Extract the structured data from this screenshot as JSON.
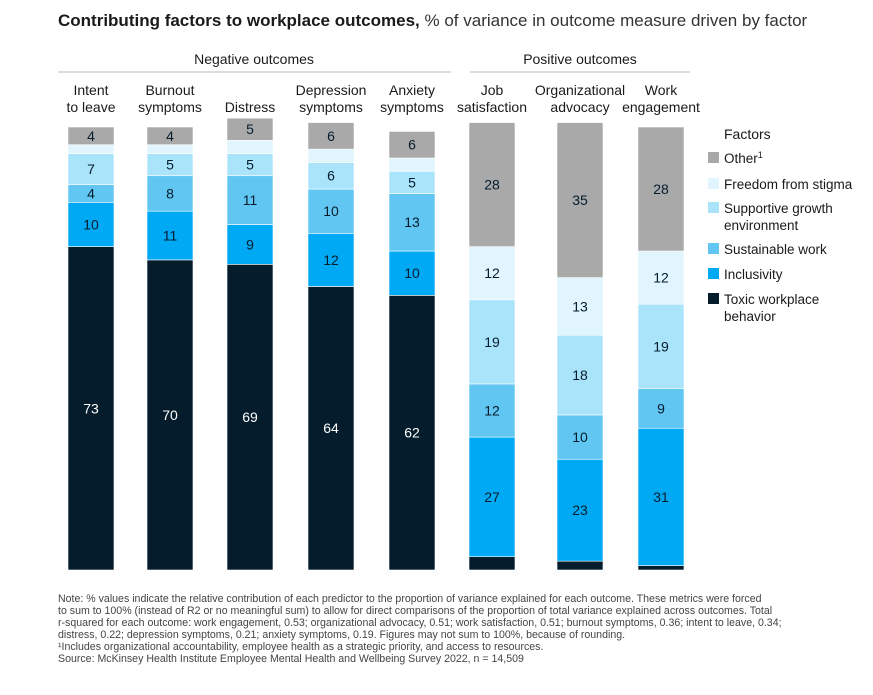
{
  "title": {
    "bold": "Contributing factors to workplace outcomes,",
    "light": "% of variance in outcome measure driven by factor"
  },
  "group_labels": {
    "negative": "Negative outcomes",
    "positive": "Positive outcomes"
  },
  "legend_title": "Factors",
  "chart_data": {
    "type": "bar",
    "stacked": true,
    "orientation": "vertical",
    "ylim": [
      0,
      100
    ],
    "categories": [
      [
        "Intent",
        "to leave"
      ],
      [
        "Burnout",
        "symptoms"
      ],
      [
        "Distress"
      ],
      [
        "Depression",
        "symptoms"
      ],
      [
        "Anxiety",
        "symptoms"
      ],
      [
        "Job",
        "satisfaction"
      ],
      [
        "Organizational",
        "advocacy"
      ],
      [
        "Work",
        "engagement"
      ]
    ],
    "series": [
      {
        "name": "Toxic workplace behavior",
        "label_lines": [
          "Toxic workplace",
          "behavior"
        ],
        "color": "#051c2c",
        "text_color": "#ffffff",
        "values": [
          73,
          70,
          69,
          64,
          62,
          3,
          2,
          1
        ]
      },
      {
        "name": "Inclusivity",
        "label_lines": [
          "Inclusivity"
        ],
        "color": "#00a9f4",
        "text_color": "#051c2c",
        "values": [
          10,
          11,
          9,
          12,
          10,
          27,
          23,
          31
        ]
      },
      {
        "name": "Sustainable work",
        "label_lines": [
          "Sustainable work"
        ],
        "color": "#61c6f2",
        "text_color": "#051c2c",
        "values": [
          4,
          8,
          11,
          10,
          13,
          12,
          10,
          9
        ]
      },
      {
        "name": "Supportive growth environment",
        "label_lines": [
          "Supportive growth",
          "environment"
        ],
        "color": "#aae4fb",
        "text_color": "#051c2c",
        "values": [
          7,
          5,
          5,
          6,
          5,
          19,
          18,
          19
        ]
      },
      {
        "name": "Freedom from stigma",
        "label_lines": [
          "Freedom from stigma"
        ],
        "color": "#e0f5fd",
        "text_color": "#051c2c",
        "values": [
          2,
          2,
          3,
          3,
          3,
          12,
          13,
          12
        ]
      },
      {
        "name": "Other",
        "label_lines": [
          "Other"
        ],
        "superscript": "1",
        "color": "#a9a9a9",
        "text_color": "#051c2c",
        "values": [
          4,
          4,
          5,
          6,
          6,
          28,
          35,
          28
        ]
      }
    ]
  },
  "footnote": [
    "Note: % values indicate the relative contribution of each predictor to the proportion of variance explained for each outcome. These metrics were forced",
    "to sum to 100% (instead of R2 or no meaningful sum) to allow for direct comparisons of the proportion of total variance explained across outcomes. Total",
    "r-squared for each outcome: work engagement, 0.53; organizational advocacy, 0.51; work satisfaction, 0.51; burnout symptoms, 0.36; intent to leave, 0.34;",
    "distress, 0.22; depression symptoms, 0.21; anxiety symptoms, 0.19. Figures may not sum to 100%, because of rounding.",
    "¹Includes organizational accountability, employee health as a strategic priority, and access to resources.",
    "Source: McKinsey Health Institute Employee Mental Health and Wellbeing Survey 2022, n = 14,509"
  ]
}
